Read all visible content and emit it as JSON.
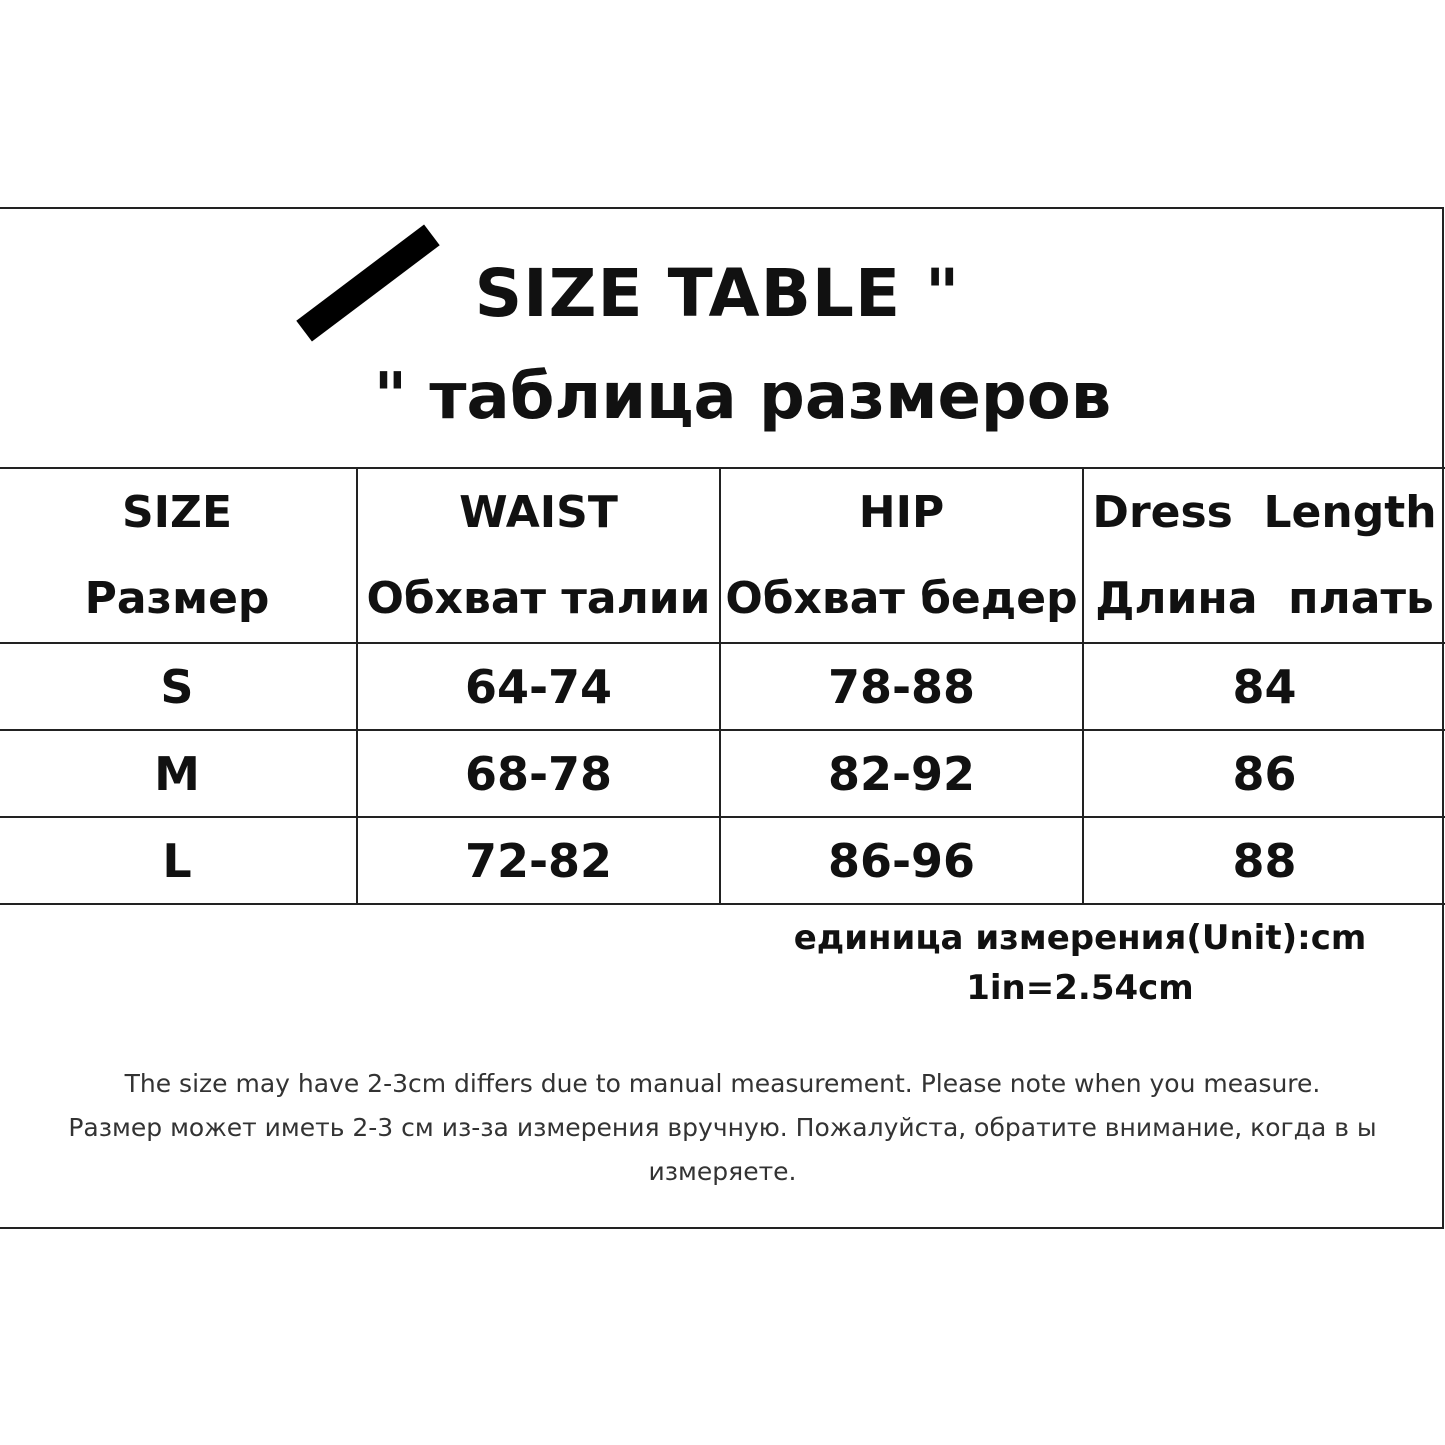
{
  "title": {
    "en": "SIZE TABLE \"",
    "ru": "\" таблица размеров"
  },
  "logo_icon": "black-diagonal-bar",
  "table": {
    "headers": [
      {
        "en": "SIZE",
        "ru": "Размер"
      },
      {
        "en": "WAIST",
        "ru": "Обхват талии"
      },
      {
        "en": "HIP",
        "ru": "Обхват бедер"
      },
      {
        "en": "Dress  Length",
        "ru": "Длина  плать"
      }
    ],
    "rows": [
      [
        "S",
        "64-74",
        "78-88",
        "84"
      ],
      [
        "M",
        "68-78",
        "82-92",
        "86"
      ],
      [
        "L",
        "72-82",
        "86-96",
        "88"
      ]
    ]
  },
  "units": {
    "line1": "единица измерения(Unit):cm",
    "line2": "1in=2.54cm"
  },
  "notes": {
    "en": "The size may have 2-3cm differs due to manual measurement. Please note when you measure.",
    "ru": "Размер может иметь 2-3 см из-за измерения вручную. Пожалуйста, обратите внимание, когда в ы измеряете."
  }
}
